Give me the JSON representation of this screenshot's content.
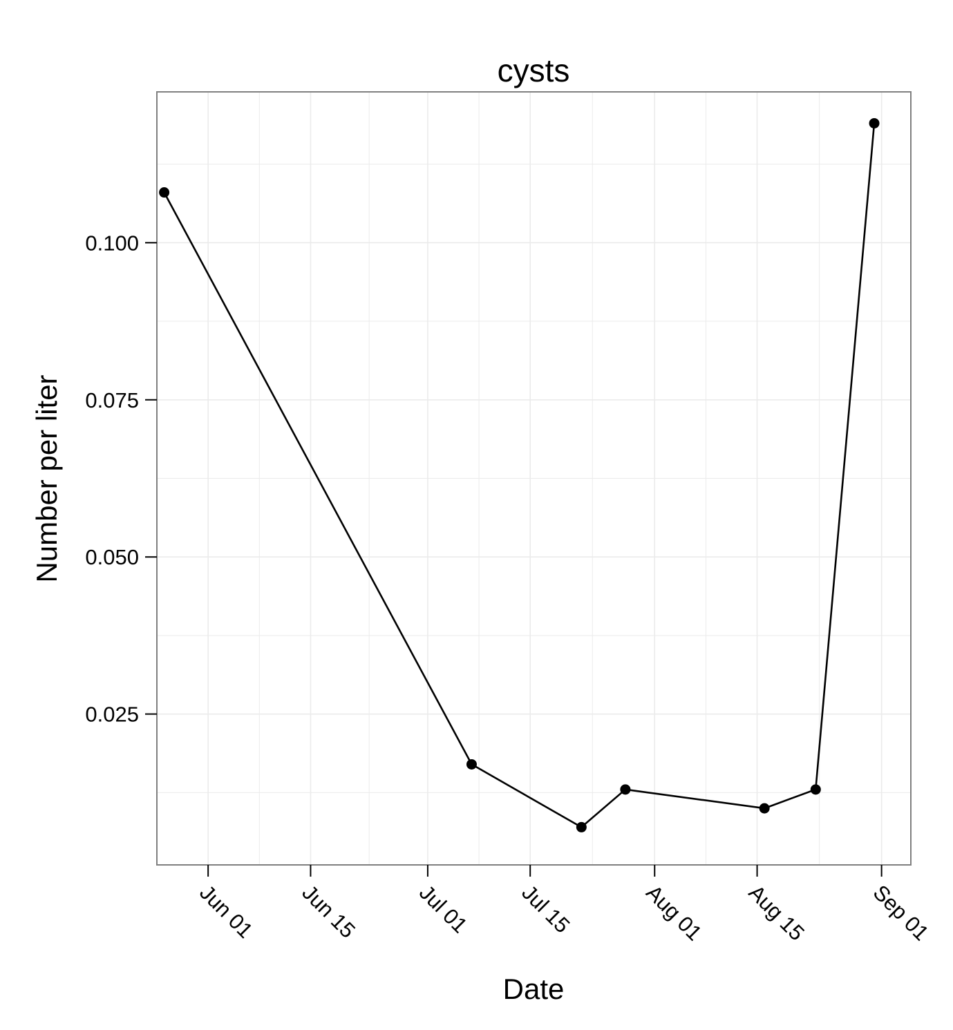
{
  "chart_data": {
    "type": "line",
    "title": "cysts",
    "xlabel": "Date",
    "ylabel": "Number per liter",
    "x_tick_labels": [
      "Jun 01",
      "Jun 15",
      "Jul 01",
      "Jul 15",
      "Aug 01",
      "Aug 15",
      "Sep 01"
    ],
    "x_tick_dates": [
      "2013-06-01",
      "2013-06-15",
      "2013-07-01",
      "2013-07-15",
      "2013-08-01",
      "2013-08-15",
      "2013-09-01"
    ],
    "y_tick_labels": [
      "0.025",
      "0.050",
      "0.075",
      "0.100"
    ],
    "y_ticks": [
      0.025,
      0.05,
      0.075,
      0.1
    ],
    "xlim": [
      "2013-05-25",
      "2013-09-05"
    ],
    "ylim": [
      0.001,
      0.124
    ],
    "grid": true,
    "legend": "none",
    "colors": {
      "line": "#000000",
      "grid": "#ebebeb",
      "panel_border": "#7f7f7f",
      "background": "#ffffff"
    },
    "series": [
      {
        "x": [
          "2013-05-26",
          "2013-07-07",
          "2013-07-22",
          "2013-07-28",
          "2013-08-16",
          "2013-08-23",
          "2013-08-31"
        ],
        "y": [
          0.108,
          0.017,
          0.007,
          0.013,
          0.01,
          0.013,
          0.119
        ]
      }
    ]
  }
}
